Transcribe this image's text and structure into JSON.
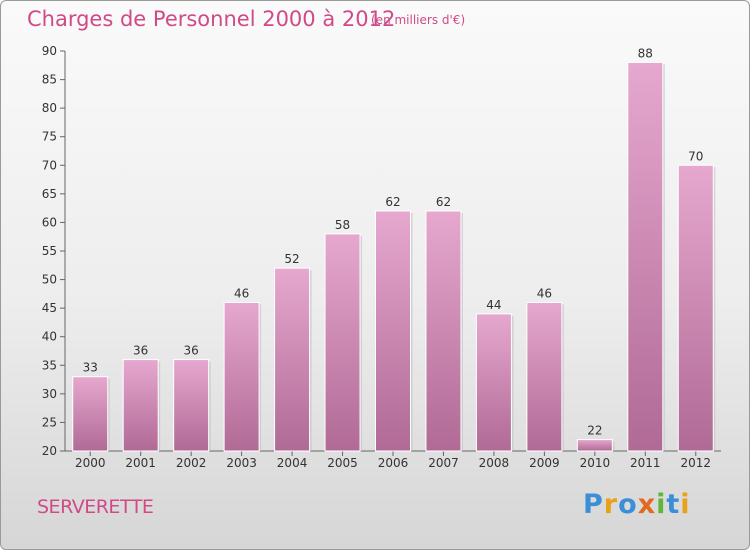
{
  "header": {
    "title": "Charges de Personnel 2000 à 2012",
    "unit": "(en milliers d'€)"
  },
  "footer": {
    "town": "SERVERETTE",
    "logo": {
      "letters": [
        "P",
        "r",
        "o",
        "x",
        "i",
        "t",
        "i"
      ],
      "colors": [
        "#3a8fd6",
        "#e8a21a",
        "#3a8fd6",
        "#e06a20",
        "#5db83a",
        "#3a8fd6",
        "#e8a21a"
      ]
    }
  },
  "colors": {
    "bar_light": "#e6a8cf",
    "bar_dark": "#b06a95",
    "text_accent": "#d04a88"
  },
  "chart_data": {
    "type": "bar",
    "title": "Charges de Personnel 2000 à 2012",
    "subtitle": "(en milliers d'€)",
    "categories": [
      "2000",
      "2001",
      "2002",
      "2003",
      "2004",
      "2005",
      "2006",
      "2007",
      "2008",
      "2009",
      "2010",
      "2011",
      "2012"
    ],
    "values": [
      33,
      36,
      36,
      46,
      52,
      58,
      62,
      62,
      44,
      46,
      22,
      88,
      70
    ],
    "data_labels": [
      "33",
      "36",
      "36",
      "46",
      "52",
      "58",
      "62",
      "62",
      "44",
      "46",
      "22",
      "88",
      "70"
    ],
    "ylim": [
      20,
      90
    ],
    "yticks": [
      20,
      25,
      30,
      35,
      40,
      45,
      50,
      55,
      60,
      65,
      70,
      75,
      80,
      85,
      90
    ],
    "grid": false,
    "legend": "none"
  }
}
